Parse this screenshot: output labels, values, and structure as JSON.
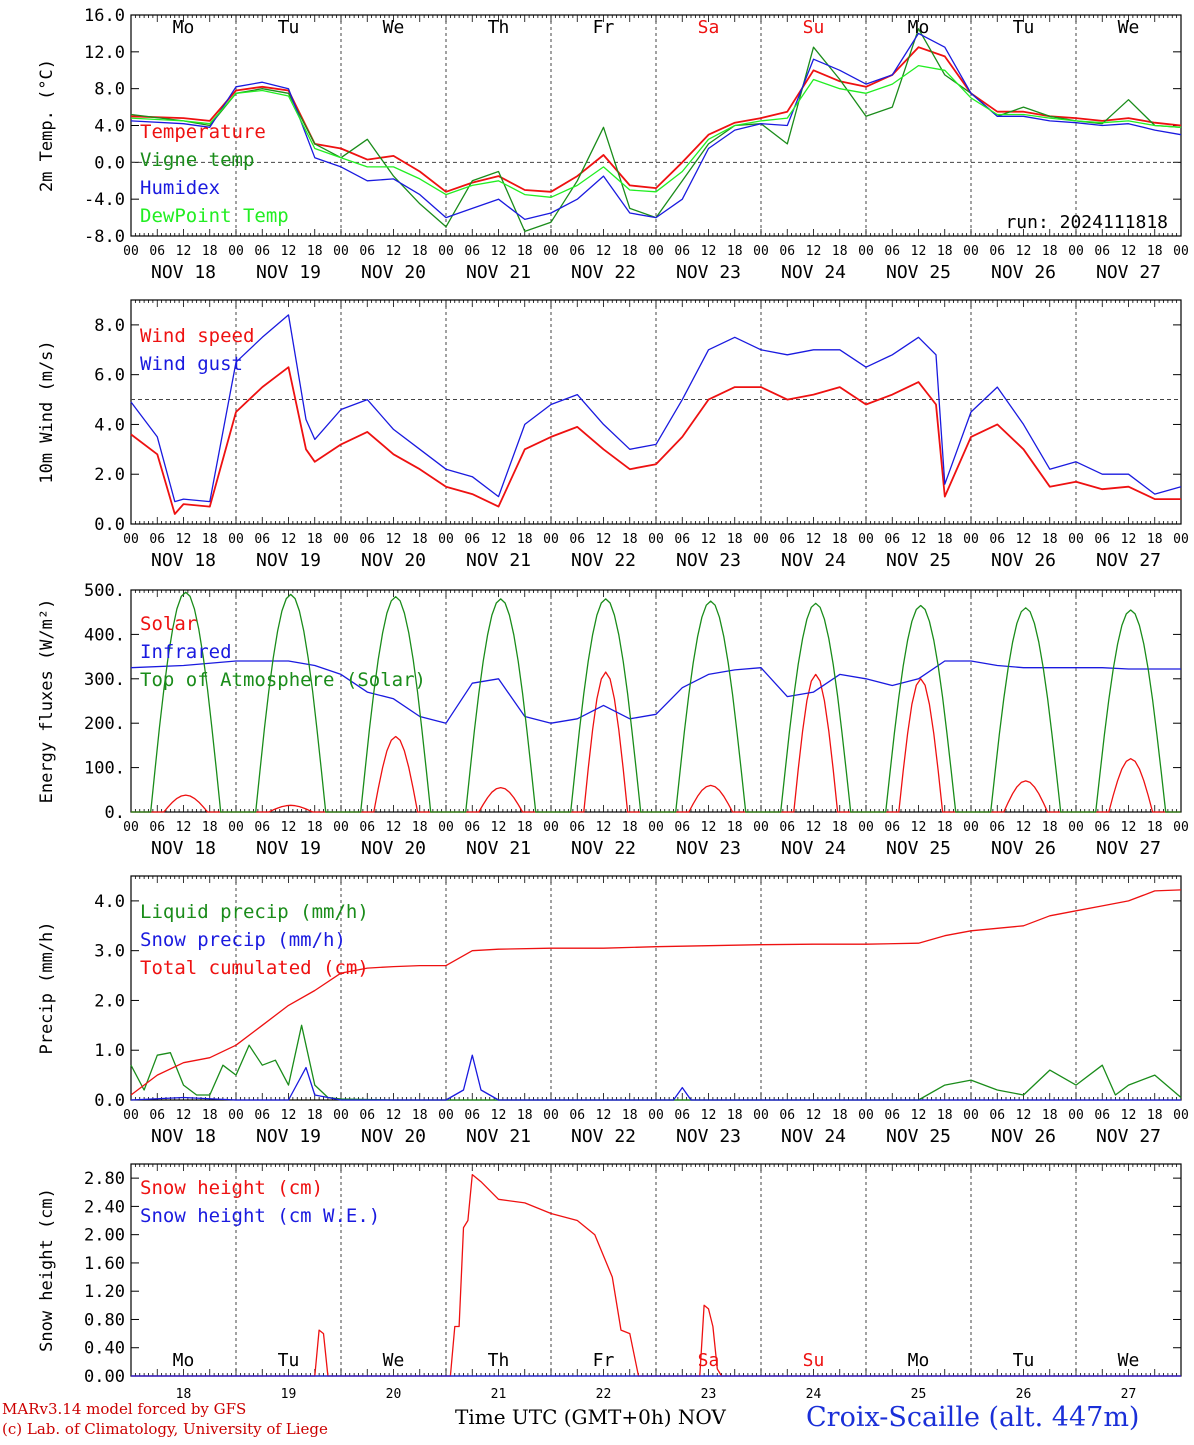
{
  "footer": {
    "model_line": "MARv3.14 model forced by GFS",
    "lab_line": "(c) Lab. of Climatology, University of Liege",
    "time_axis_title": "Time UTC (GMT+0h)",
    "month_label": "NOV",
    "station": "Croix-Scaille (alt. 447m)"
  },
  "colors": {
    "red": "#ee1111",
    "green": "#1a8c1a",
    "blue": "#1a1adf",
    "light_green": "#22ee22",
    "weekend": "#ee1111",
    "text": "#000000"
  },
  "days": [
    "Mo",
    "Tu",
    "We",
    "Th",
    "Fr",
    "Sa",
    "Su",
    "Mo",
    "Tu",
    "We"
  ],
  "weekend_days": [
    "Sa",
    "Su"
  ],
  "date_labels": [
    "NOV 18",
    "NOV 19",
    "NOV 20",
    "NOV 21",
    "NOV 22",
    "NOV 23",
    "NOV 24",
    "NOV 25",
    "NOV 26",
    "NOV 27"
  ],
  "day_numbers": [
    "18",
    "19",
    "20",
    "21",
    "22",
    "23",
    "24",
    "25",
    "26",
    "27"
  ],
  "hour_ticks": [
    "00",
    "06",
    "12",
    "18"
  ],
  "chart_data": [
    {
      "type": "line",
      "ylabel": "2m Temp. (°C)",
      "ylim": [
        -8,
        16
      ],
      "yticks": [
        "-8.0",
        "-4.0",
        "0.0",
        "4.0",
        "8.0",
        "12.0",
        "16.0"
      ],
      "reference_line": 0,
      "x_unit": "hours since NOV 18 00 UTC",
      "annotation": "run: 2024111818",
      "series": [
        {
          "name": "Temperature",
          "color": "red",
          "x": [
            0,
            12,
            18,
            24,
            30,
            36,
            42,
            48,
            54,
            60,
            66,
            72,
            78,
            84,
            90,
            96,
            102,
            108,
            114,
            120,
            126,
            132,
            138,
            144,
            150,
            156,
            162,
            168,
            174,
            180,
            186,
            192,
            198,
            204,
            210,
            216,
            222,
            228,
            234,
            240
          ],
          "values": [
            5.0,
            4.8,
            4.5,
            7.8,
            8.2,
            7.8,
            2.0,
            1.5,
            0.3,
            0.7,
            -1.0,
            -3.2,
            -2.2,
            -1.5,
            -3.0,
            -3.2,
            -1.5,
            0.8,
            -2.5,
            -2.8,
            0.0,
            3.0,
            4.3,
            4.8,
            5.5,
            10.0,
            8.8,
            8.2,
            9.5,
            12.5,
            11.5,
            7.5,
            5.5,
            5.5,
            5.0,
            4.8,
            4.5,
            4.8,
            4.3,
            4.0
          ]
        },
        {
          "name": "Vigne temp",
          "color": "green",
          "x": [
            0,
            12,
            18,
            24,
            30,
            36,
            42,
            48,
            54,
            60,
            66,
            72,
            78,
            84,
            90,
            96,
            102,
            108,
            114,
            120,
            126,
            132,
            138,
            144,
            150,
            156,
            162,
            168,
            174,
            180,
            186,
            192,
            198,
            204,
            210,
            216,
            222,
            228,
            234,
            240
          ],
          "values": [
            5.2,
            4.5,
            4.0,
            7.5,
            8.0,
            7.5,
            2.0,
            0.5,
            2.5,
            -1.5,
            -4.5,
            -7.0,
            -2.0,
            -1.0,
            -7.5,
            -6.5,
            -2.0,
            3.8,
            -5.0,
            -6.0,
            -2.0,
            2.0,
            4.0,
            4.2,
            2.0,
            12.5,
            9.0,
            5.0,
            6.0,
            14.5,
            9.5,
            7.5,
            5.0,
            6.0,
            5.0,
            4.5,
            4.2,
            6.8,
            4.0,
            3.8
          ]
        },
        {
          "name": "Humidex",
          "color": "blue",
          "x": [
            0,
            12,
            18,
            24,
            30,
            36,
            42,
            48,
            54,
            60,
            66,
            72,
            78,
            84,
            90,
            96,
            102,
            108,
            114,
            120,
            126,
            132,
            138,
            144,
            150,
            156,
            162,
            168,
            174,
            180,
            186,
            192,
            198,
            204,
            210,
            216,
            222,
            228,
            234,
            240
          ],
          "values": [
            4.5,
            4.2,
            3.8,
            8.2,
            8.7,
            8.0,
            0.5,
            -0.5,
            -2.0,
            -1.8,
            -3.5,
            -6.0,
            -5.0,
            -4.0,
            -6.2,
            -5.5,
            -4.0,
            -1.5,
            -5.5,
            -6.0,
            -4.0,
            1.5,
            3.5,
            4.2,
            4.0,
            11.2,
            10.0,
            8.5,
            9.5,
            14.0,
            12.5,
            7.5,
            5.0,
            5.0,
            4.5,
            4.3,
            4.0,
            4.2,
            3.5,
            3.0
          ]
        },
        {
          "name": "DewPoint Temp",
          "color": "light_green",
          "x": [
            0,
            12,
            18,
            24,
            30,
            36,
            42,
            48,
            54,
            60,
            66,
            72,
            78,
            84,
            90,
            96,
            102,
            108,
            114,
            120,
            126,
            132,
            138,
            144,
            150,
            156,
            162,
            168,
            174,
            180,
            186,
            192,
            198,
            204,
            210,
            216,
            222,
            228,
            234,
            240
          ],
          "values": [
            4.8,
            4.5,
            4.2,
            7.5,
            7.8,
            7.2,
            1.5,
            0.5,
            -0.5,
            -0.5,
            -1.8,
            -3.5,
            -2.5,
            -2.0,
            -3.5,
            -3.8,
            -2.5,
            -0.5,
            -3.0,
            -3.2,
            -1.0,
            2.5,
            4.0,
            4.5,
            4.8,
            9.0,
            8.0,
            7.5,
            8.5,
            10.5,
            10.0,
            7.0,
            5.2,
            5.2,
            4.8,
            4.5,
            4.3,
            4.5,
            4.0,
            3.8
          ]
        }
      ]
    },
    {
      "type": "line",
      "ylabel": "10m Wind (m/s)",
      "ylim": [
        0,
        9
      ],
      "yticks": [
        "0.0",
        "2.0",
        "4.0",
        "6.0",
        "8.0"
      ],
      "reference_line": 5,
      "x_unit": "hours since NOV 18 00 UTC",
      "series": [
        {
          "name": "Wind speed",
          "color": "red",
          "x": [
            0,
            6,
            10,
            12,
            18,
            24,
            30,
            36,
            40,
            42,
            48,
            54,
            60,
            66,
            72,
            78,
            84,
            90,
            96,
            102,
            108,
            114,
            120,
            126,
            132,
            138,
            144,
            150,
            156,
            162,
            168,
            174,
            180,
            184,
            186,
            192,
            198,
            204,
            210,
            216,
            222,
            228,
            234,
            240
          ],
          "values": [
            3.6,
            2.8,
            0.4,
            0.8,
            0.7,
            4.5,
            5.5,
            6.3,
            3.0,
            2.5,
            3.2,
            3.7,
            2.8,
            2.2,
            1.5,
            1.2,
            0.7,
            3.0,
            3.5,
            3.9,
            3.0,
            2.2,
            2.4,
            3.5,
            5.0,
            5.5,
            5.5,
            5.0,
            5.2,
            5.5,
            4.8,
            5.2,
            5.7,
            4.8,
            1.1,
            3.5,
            4.0,
            3.0,
            1.5,
            1.7,
            1.4,
            1.5,
            1.0,
            1.0
          ]
        },
        {
          "name": "Wind gust",
          "color": "blue",
          "x": [
            0,
            6,
            10,
            12,
            18,
            24,
            30,
            36,
            40,
            42,
            48,
            54,
            60,
            66,
            72,
            78,
            84,
            90,
            96,
            102,
            108,
            114,
            120,
            126,
            132,
            138,
            144,
            150,
            156,
            162,
            168,
            174,
            180,
            184,
            186,
            192,
            198,
            204,
            210,
            216,
            222,
            228,
            234,
            240
          ],
          "values": [
            4.9,
            3.5,
            0.9,
            1.0,
            0.9,
            6.5,
            7.5,
            8.4,
            4.2,
            3.4,
            4.6,
            5.0,
            3.8,
            3.0,
            2.2,
            1.9,
            1.1,
            4.0,
            4.8,
            5.2,
            4.0,
            3.0,
            3.2,
            5.0,
            7.0,
            7.5,
            7.0,
            6.8,
            7.0,
            7.0,
            6.3,
            6.8,
            7.5,
            6.8,
            1.6,
            4.5,
            5.5,
            4.0,
            2.2,
            2.5,
            2.0,
            2.0,
            1.2,
            1.5
          ]
        }
      ]
    },
    {
      "type": "line",
      "ylabel": "Energy fluxes (W/m²)",
      "ylim": [
        0,
        500
      ],
      "yticks": [
        "0.",
        "100.",
        "200.",
        "300.",
        "400.",
        "500."
      ],
      "x_unit": "hours since NOV 18 00 UTC",
      "series": [
        {
          "name": "Solar",
          "color": "red",
          "peaks": [
            38,
            15,
            170,
            55,
            315,
            60,
            310,
            300,
            70,
            120
          ]
        },
        {
          "name": "Infrared",
          "color": "blue",
          "x": [
            0,
            12,
            24,
            36,
            42,
            48,
            54,
            60,
            66,
            72,
            78,
            84,
            90,
            96,
            102,
            108,
            114,
            120,
            126,
            132,
            138,
            144,
            150,
            156,
            162,
            168,
            174,
            180,
            186,
            192,
            198,
            204,
            210,
            216,
            222,
            228,
            234,
            240
          ],
          "values": [
            325,
            330,
            340,
            340,
            330,
            310,
            270,
            255,
            215,
            200,
            290,
            300,
            215,
            200,
            210,
            240,
            210,
            220,
            280,
            310,
            320,
            325,
            260,
            270,
            310,
            300,
            285,
            300,
            340,
            340,
            330,
            325,
            325,
            325,
            325,
            322,
            322,
            322
          ]
        },
        {
          "name": "Top of Atmosphere (Solar)",
          "color": "green",
          "peaks": [
            495,
            490,
            485,
            480,
            480,
            475,
            470,
            465,
            460,
            455
          ]
        }
      ]
    },
    {
      "type": "line",
      "ylabel": "Precip (mm/h)",
      "ylim": [
        0,
        4.5
      ],
      "yticks": [
        "0.0",
        "1.0",
        "2.0",
        "3.0",
        "4.0"
      ],
      "x_unit": "hours since NOV 18 00 UTC",
      "series": [
        {
          "name": "Liquid precip (mm/h)",
          "color": "green",
          "x": [
            0,
            3,
            6,
            9,
            12,
            15,
            18,
            21,
            24,
            27,
            30,
            33,
            36,
            39,
            42,
            45,
            48,
            60,
            72,
            84,
            96,
            108,
            120,
            132,
            144,
            156,
            168,
            180,
            186,
            192,
            198,
            204,
            210,
            216,
            222,
            225,
            228,
            234,
            240
          ],
          "values": [
            0.7,
            0.2,
            0.9,
            0.95,
            0.3,
            0.1,
            0.1,
            0.7,
            0.5,
            1.1,
            0.7,
            0.8,
            0.3,
            1.5,
            0.3,
            0.05,
            0.02,
            0.0,
            0.0,
            0.0,
            0.0,
            0.0,
            0.0,
            0.0,
            0.0,
            0.0,
            0.0,
            0.0,
            0.3,
            0.4,
            0.2,
            0.1,
            0.6,
            0.3,
            0.7,
            0.1,
            0.3,
            0.5,
            0.05
          ]
        },
        {
          "name": "Snow precip (mm/h)",
          "color": "blue",
          "x": [
            0,
            12,
            24,
            36,
            40,
            42,
            48,
            60,
            72,
            76,
            78,
            80,
            84,
            96,
            108,
            124,
            126,
            128,
            132,
            144,
            156,
            168,
            180,
            192,
            204,
            216,
            228,
            240
          ],
          "values": [
            0.0,
            0.05,
            0.0,
            0.0,
            0.65,
            0.1,
            0.0,
            0.0,
            0.0,
            0.2,
            0.9,
            0.2,
            0.0,
            0.0,
            0.0,
            0.0,
            0.25,
            0.0,
            0.0,
            0.0,
            0.0,
            0.0,
            0.0,
            0.0,
            0.0,
            0.0,
            0.0,
            0.0
          ]
        },
        {
          "name": "Total cumulated (cm)",
          "color": "red",
          "x": [
            0,
            6,
            12,
            18,
            24,
            30,
            36,
            42,
            48,
            54,
            60,
            66,
            72,
            78,
            84,
            96,
            108,
            120,
            132,
            144,
            156,
            168,
            180,
            186,
            192,
            198,
            204,
            210,
            216,
            222,
            228,
            234,
            240
          ],
          "values": [
            0.1,
            0.5,
            0.75,
            0.85,
            1.1,
            1.5,
            1.9,
            2.2,
            2.55,
            2.65,
            2.68,
            2.7,
            2.7,
            3.0,
            3.03,
            3.05,
            3.05,
            3.08,
            3.1,
            3.12,
            3.13,
            3.13,
            3.15,
            3.3,
            3.4,
            3.45,
            3.5,
            3.7,
            3.8,
            3.9,
            4.0,
            4.2,
            4.22
          ]
        }
      ]
    },
    {
      "type": "line",
      "ylabel": "Snow height (cm)",
      "ylim": [
        0,
        3.0
      ],
      "yticks": [
        "0.00",
        "0.40",
        "0.80",
        "1.20",
        "1.60",
        "2.00",
        "2.40",
        "2.80"
      ],
      "x_unit": "hours since NOV 18 00 UTC",
      "series": [
        {
          "name": "Snow height (cm)",
          "color": "red",
          "x": [
            0,
            42,
            43,
            44,
            45,
            48,
            60,
            73,
            74,
            75,
            76,
            77,
            78,
            80,
            84,
            90,
            96,
            102,
            106,
            110,
            112,
            114,
            116,
            130,
            131,
            132,
            133,
            134,
            135,
            240
          ],
          "values": [
            0,
            0,
            0.65,
            0.6,
            0,
            0,
            0,
            0,
            0.7,
            0.7,
            2.1,
            2.2,
            2.85,
            2.75,
            2.5,
            2.45,
            2.3,
            2.2,
            2.0,
            1.4,
            0.65,
            0.6,
            0.0,
            0.0,
            1.0,
            0.95,
            0.7,
            0.1,
            0.0,
            0.0
          ]
        },
        {
          "name": "Snow height (cm W.E.)",
          "color": "blue",
          "x": [
            0,
            240
          ],
          "values": [
            0,
            0
          ]
        }
      ]
    }
  ]
}
